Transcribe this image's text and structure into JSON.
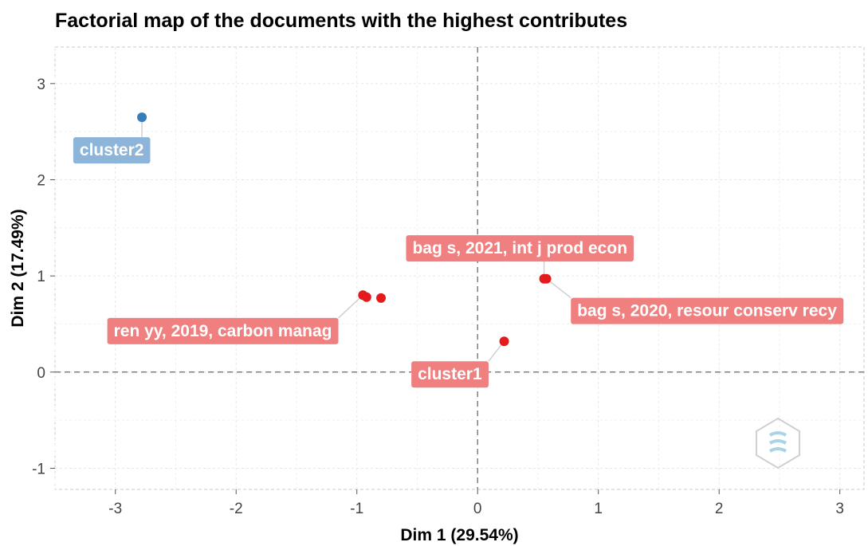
{
  "chart_data": {
    "type": "scatter",
    "title": "Factorial map of the documents with the highest contributes",
    "xlabel": "Dim 1 (29.54%)",
    "ylabel": "Dim 2 (17.49%)",
    "xlim": [
      -3.5,
      3.2
    ],
    "ylim": [
      -1.22,
      3.38
    ],
    "x_ticks": [
      -3,
      -2,
      -1,
      0,
      1,
      2,
      3
    ],
    "y_ticks": [
      -1,
      0,
      1,
      2,
      3
    ],
    "grid": true,
    "reference_lines": {
      "x": 0,
      "y": 0,
      "style": "dashed"
    },
    "colors": {
      "cluster1": "#e41a1c",
      "cluster2": "#377eb8",
      "label_cluster1": "#f08080",
      "label_cluster2": "#8db4d9"
    },
    "points": [
      {
        "x": -2.78,
        "y": 2.65,
        "cluster": "cluster2"
      },
      {
        "x": -0.95,
        "y": 0.8,
        "cluster": "cluster1"
      },
      {
        "x": -0.92,
        "y": 0.78,
        "cluster": "cluster1"
      },
      {
        "x": -0.8,
        "y": 0.77,
        "cluster": "cluster1"
      },
      {
        "x": 0.22,
        "y": 0.32,
        "cluster": "cluster1"
      },
      {
        "x": 0.55,
        "y": 0.97,
        "cluster": "cluster1"
      },
      {
        "x": 0.57,
        "y": 0.97,
        "cluster": "cluster1"
      }
    ],
    "labels": [
      {
        "text": "cluster2",
        "cluster": "cluster2",
        "x": -3.03,
        "y": 2.31,
        "anchor": {
          "x": -2.78,
          "y": 2.65
        }
      },
      {
        "text": "bag s, 2021, int j prod econ",
        "cluster": "cluster1",
        "x": 0.35,
        "y": 1.29,
        "anchor": {
          "x": 0.55,
          "y": 0.97
        }
      },
      {
        "text": "ren yy, 2019, carbon manag",
        "cluster": "cluster1",
        "x": -2.11,
        "y": 0.43,
        "anchor": {
          "x": -0.95,
          "y": 0.8
        }
      },
      {
        "text": "bag s, 2020, resour conserv recy",
        "cluster": "cluster1",
        "x": 1.9,
        "y": 0.64,
        "anchor": {
          "x": 0.57,
          "y": 0.97
        }
      },
      {
        "text": "cluster1",
        "cluster": "cluster1",
        "x": -0.23,
        "y": -0.02,
        "anchor": {
          "x": 0.22,
          "y": 0.32
        }
      }
    ]
  }
}
